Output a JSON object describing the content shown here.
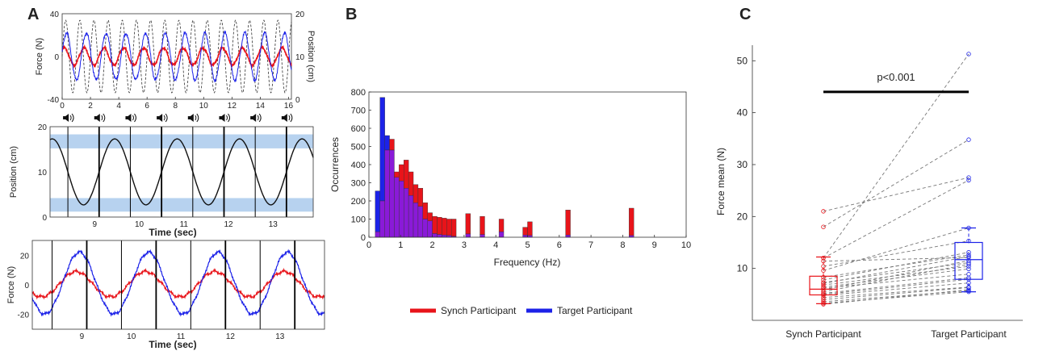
{
  "panel_labels": {
    "a": "A",
    "b": "B",
    "c": "C"
  },
  "colors": {
    "synch": "#e8141a",
    "target": "#1c22e8",
    "overlap": "#8a1ad8",
    "band": "#b7d2ef",
    "sine": "#111111"
  },
  "chart_data": [
    {
      "id": "A1",
      "type": "line",
      "x": {
        "ticks": [
          0,
          2,
          4,
          6,
          8,
          10,
          12,
          14,
          16
        ],
        "range": [
          0,
          16.2
        ]
      },
      "ylabel_left": "Force (N)",
      "ylim_left": [
        -40,
        40
      ],
      "yticks_left": [
        -40,
        0,
        40
      ],
      "ylabel_right": "Position (cm)",
      "ylim_right": [
        0,
        20
      ],
      "yticks_right": [
        0,
        10,
        20
      ],
      "series": [
        {
          "role": "position",
          "style": "dashed-black",
          "period_s": 1.0,
          "center": 10,
          "amplitude": 8.5
        },
        {
          "role": "synch",
          "color": "red",
          "period_s": 1.4,
          "center": 0,
          "amplitude": 8
        },
        {
          "role": "target",
          "color": "blue",
          "period_s": 1.4,
          "center": 0,
          "amplitude": 22
        }
      ]
    },
    {
      "id": "A2",
      "type": "line",
      "xlabel": "Time (sec)",
      "xlim": [
        8.0,
        13.9
      ],
      "xticks": [
        9,
        10,
        11,
        12,
        13
      ],
      "ylabel": "Position (cm)",
      "ylim": [
        0,
        20
      ],
      "yticks": [
        0,
        10,
        20
      ],
      "bands": [
        [
          1.2,
          4.2
        ],
        [
          15.2,
          18.3
        ]
      ],
      "beat_times": [
        8.4,
        9.1,
        9.8,
        10.5,
        11.2,
        11.9,
        12.6,
        13.3
      ],
      "sine": {
        "period_s": 1.4,
        "center": 10,
        "amplitude": 7.3,
        "phase_time_of_min": 8.75
      }
    },
    {
      "id": "A3",
      "type": "line",
      "xlabel": "Time (sec)",
      "xlim": [
        8.0,
        13.9
      ],
      "xticks": [
        9,
        10,
        11,
        12,
        13
      ],
      "ylabel": "Force (N)",
      "ylim": [
        -30,
        30
      ],
      "yticks": [
        -20,
        0,
        20
      ],
      "beat_times": [
        8.4,
        9.1,
        9.8,
        10.5,
        11.2,
        11.9,
        12.6,
        13.3
      ],
      "series": [
        {
          "role": "synch",
          "color": "red",
          "period_s": 1.4,
          "center": 0,
          "amplitude": 9
        },
        {
          "role": "target",
          "color": "blue",
          "period_s": 1.4,
          "center": 0,
          "amplitude": 22
        }
      ]
    },
    {
      "id": "B",
      "type": "bar",
      "xlabel": "Frequency (Hz)",
      "ylabel": "Occurrences",
      "xlim": [
        0,
        10
      ],
      "ylim": [
        0,
        800
      ],
      "xticks": [
        0,
        1,
        2,
        3,
        4,
        5,
        6,
        7,
        8,
        9,
        10
      ],
      "yticks": [
        0,
        100,
        200,
        300,
        400,
        500,
        600,
        700,
        800
      ],
      "bin_width": 0.15,
      "bin_starts": [
        0.2,
        0.35,
        0.5,
        0.65,
        0.8,
        0.95,
        1.1,
        1.25,
        1.4,
        1.55,
        1.7,
        1.85,
        2.0,
        2.15,
        2.3,
        2.45,
        2.6,
        3.05,
        3.5,
        4.1,
        4.85,
        5.0,
        6.2,
        8.2
      ],
      "series": [
        {
          "name": "Synch Participant",
          "values": [
            30,
            200,
            480,
            540,
            360,
            400,
            425,
            360,
            290,
            270,
            190,
            135,
            115,
            110,
            105,
            100,
            100,
            130,
            115,
            100,
            55,
            85,
            150,
            160
          ]
        },
        {
          "name": "Target Participant",
          "values": [
            255,
            770,
            560,
            480,
            330,
            310,
            270,
            230,
            190,
            170,
            100,
            90,
            20,
            15,
            12,
            10,
            5,
            18,
            15,
            30,
            12,
            10,
            12,
            10
          ]
        }
      ]
    },
    {
      "id": "C",
      "type": "box",
      "ylabel": "Force mean (N)",
      "ylim": [
        0,
        53
      ],
      "yticks": [
        10,
        20,
        30,
        40,
        50
      ],
      "categories": [
        "Synch Participant",
        "Target Participant"
      ],
      "significance": "p<0.001",
      "sig_y": 44,
      "boxes": [
        {
          "q1": 4.9,
          "median": 6.0,
          "q3": 8.5,
          "whisker_low": 3.2,
          "whisker_high": 12.2
        },
        {
          "q1": 7.9,
          "median": 11.7,
          "q3": 15.0,
          "whisker_low": 5.5,
          "whisker_high": 17.8
        }
      ],
      "pairs": [
        [
          21.0,
          27.5
        ],
        [
          18.0,
          34.8
        ],
        [
          12.0,
          51.3
        ],
        [
          12.0,
          27.0
        ],
        [
          11.4,
          12.1
        ],
        [
          10.4,
          15.3
        ],
        [
          9.6,
          17.8
        ],
        [
          8.3,
          12.6
        ],
        [
          7.8,
          13.1
        ],
        [
          7.3,
          11.1
        ],
        [
          7.1,
          12.3
        ],
        [
          6.8,
          10.4
        ],
        [
          6.4,
          9.9
        ],
        [
          6.2,
          8.9
        ],
        [
          5.9,
          11.5
        ],
        [
          5.5,
          10.8
        ],
        [
          5.2,
          8.2
        ],
        [
          5.0,
          7.9
        ],
        [
          4.8,
          7.2
        ],
        [
          4.4,
          6.4
        ],
        [
          4.0,
          6.3
        ],
        [
          3.6,
          5.7
        ],
        [
          3.3,
          5.5
        ],
        [
          3.1,
          5.9
        ]
      ]
    }
  ],
  "legend": {
    "items": [
      {
        "label": "Synch Participant"
      },
      {
        "label": "Target Participant"
      }
    ]
  }
}
